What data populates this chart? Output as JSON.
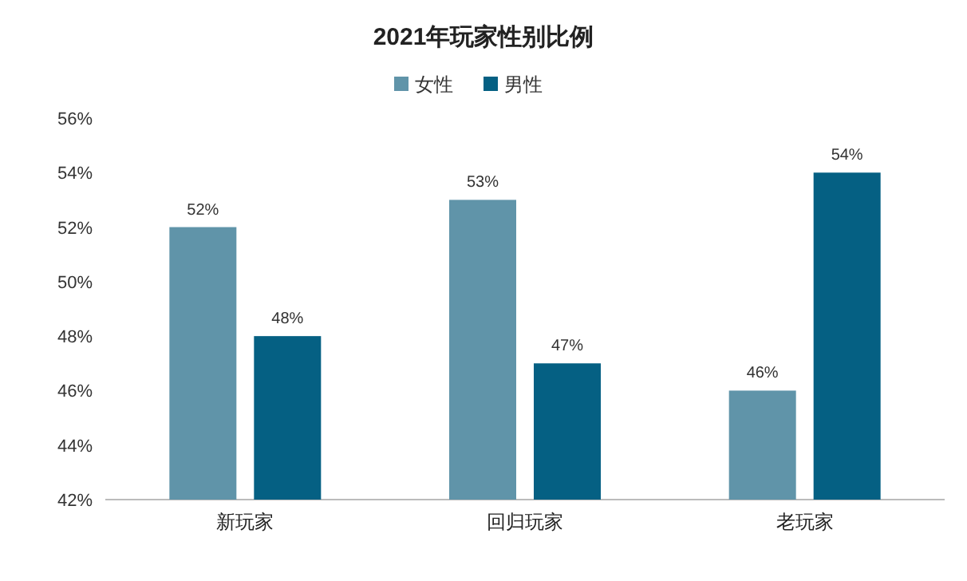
{
  "chart_data": {
    "type": "bar",
    "title": "2021年玩家性别比例",
    "categories": [
      "新玩家",
      "回归玩家",
      "老玩家"
    ],
    "series": [
      {
        "name": "女性",
        "color": "#6094a9",
        "values": [
          52,
          53,
          46
        ],
        "value_labels": [
          "52%",
          "53%",
          "46%"
        ]
      },
      {
        "name": "男性",
        "color": "#056083",
        "values": [
          48,
          47,
          54
        ],
        "value_labels": [
          "48%",
          "47%",
          "54%"
        ]
      }
    ],
    "ylim": [
      42,
      56
    ],
    "yticks": [
      {
        "value": 42,
        "label": "42%"
      },
      {
        "value": 44,
        "label": "44%"
      },
      {
        "value": 46,
        "label": "46%"
      },
      {
        "value": 48,
        "label": "48%"
      },
      {
        "value": 50,
        "label": "50%"
      },
      {
        "value": 52,
        "label": "52%"
      },
      {
        "value": 54,
        "label": "54%"
      },
      {
        "value": 56,
        "label": "56%"
      }
    ],
    "grid": false,
    "legend": "top"
  }
}
